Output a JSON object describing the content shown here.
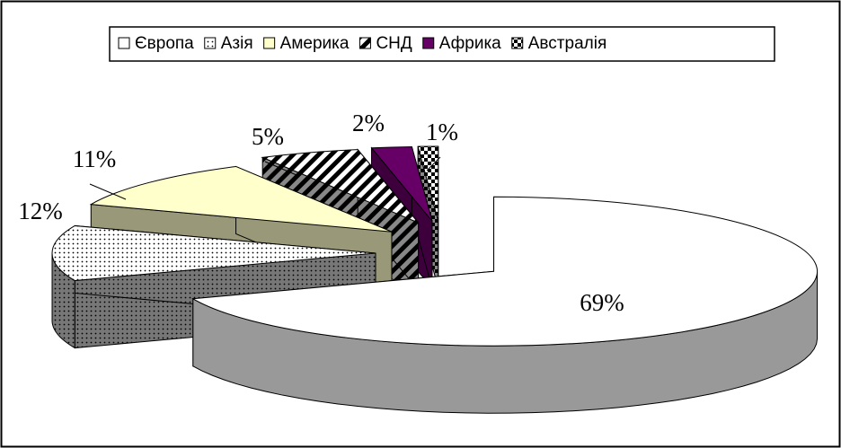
{
  "chart_data": {
    "type": "pie3d",
    "categories": [
      "Європа",
      "Азія",
      "Америка",
      "СНД",
      "Африка",
      "Австралія"
    ],
    "values": [
      69,
      12,
      11,
      5,
      2,
      1
    ],
    "value_labels": [
      "69%",
      "12%",
      "11%",
      "5%",
      "2%",
      "1%"
    ],
    "colors": [
      "#ffffff",
      "#ffffff",
      "#ffffcc",
      "#ffffff",
      "#660066",
      "#ffffff"
    ],
    "patterns": [
      "none",
      "dots",
      "none",
      "hatch",
      "none",
      "checker"
    ],
    "legend": "top"
  }
}
